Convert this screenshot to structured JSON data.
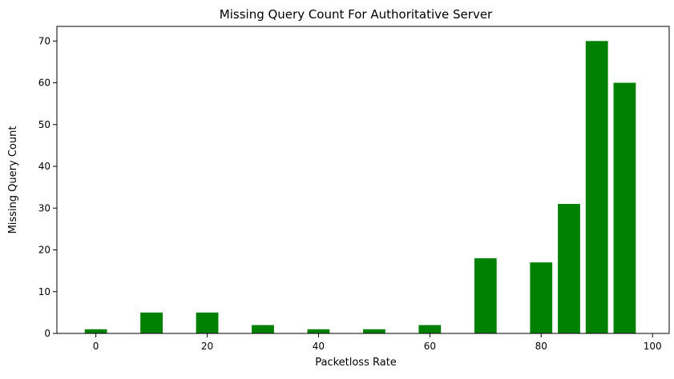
{
  "chart_data": {
    "type": "bar",
    "title": "Missing Query Count For Authoritative Server",
    "xlabel": "Packetloss Rate",
    "ylabel": "Missing Query Count",
    "color": "#008000",
    "xlim": [
      -7,
      103
    ],
    "ylim": [
      0,
      73.5
    ],
    "xticks": [
      0,
      20,
      40,
      60,
      80,
      100
    ],
    "yticks": [
      0,
      10,
      20,
      30,
      40,
      50,
      60,
      70
    ],
    "bar_width": 4,
    "grid": false,
    "points": [
      {
        "x": 0,
        "y": 1
      },
      {
        "x": 10,
        "y": 5
      },
      {
        "x": 20,
        "y": 5
      },
      {
        "x": 30,
        "y": 2
      },
      {
        "x": 40,
        "y": 1
      },
      {
        "x": 50,
        "y": 1
      },
      {
        "x": 60,
        "y": 2
      },
      {
        "x": 70,
        "y": 18
      },
      {
        "x": 80,
        "y": 17
      },
      {
        "x": 85,
        "y": 31
      },
      {
        "x": 90,
        "y": 70
      },
      {
        "x": 95,
        "y": 60
      }
    ]
  }
}
